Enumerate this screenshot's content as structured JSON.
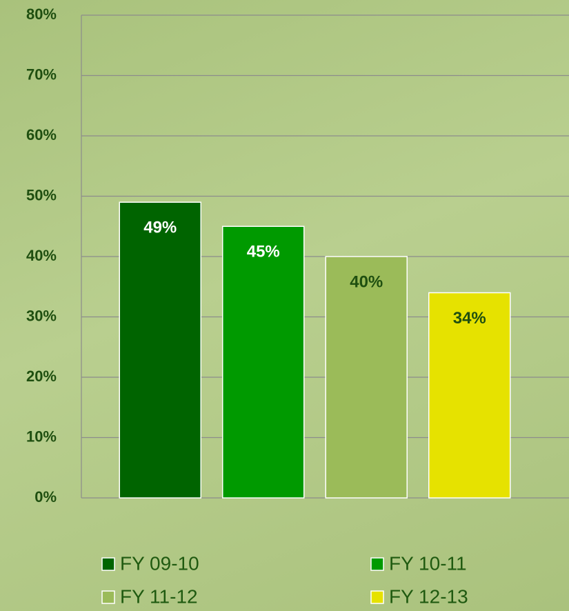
{
  "chart_data": {
    "type": "bar",
    "categories": [
      null
    ],
    "series": [
      {
        "name": "FY 09-10",
        "color": "#006400",
        "values": [
          49
        ],
        "value_labels": [
          "49%"
        ]
      },
      {
        "name": "FY 10-11",
        "color": "#009a00",
        "values": [
          45
        ],
        "value_labels": [
          "45%"
        ]
      },
      {
        "name": "FY 11-12",
        "color": "#9bbb59",
        "values": [
          40
        ],
        "value_labels": [
          "40%"
        ]
      },
      {
        "name": "FY 12-13",
        "color": "#e6e200",
        "values": [
          34
        ],
        "value_labels": [
          "34%"
        ]
      }
    ],
    "ylim": [
      0,
      80
    ],
    "yticks": [
      {
        "value": 0,
        "label": "0%"
      },
      {
        "value": 10,
        "label": "10%"
      },
      {
        "value": 20,
        "label": "20%"
      },
      {
        "value": 30,
        "label": "30%"
      },
      {
        "value": 40,
        "label": "40%"
      },
      {
        "value": 50,
        "label": "50%"
      },
      {
        "value": 60,
        "label": "60%"
      },
      {
        "value": 70,
        "label": "70%"
      },
      {
        "value": 80,
        "label": "80%"
      }
    ],
    "grid": true,
    "legend": "bottom"
  }
}
